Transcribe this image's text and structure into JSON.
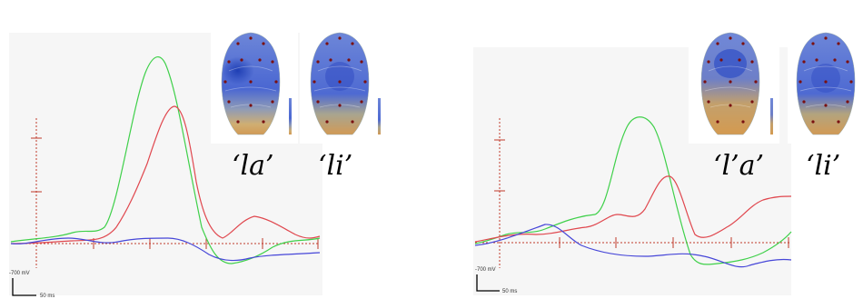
{
  "figure": {
    "panels": [
      {
        "id": "left",
        "scale": {
          "voltage": "-700 mV",
          "time": "50 ms"
        },
        "maps": [
          {
            "label": "‘la’",
            "pattern": "left-focus"
          },
          {
            "label": "‘li’",
            "pattern": "central"
          }
        ],
        "series_colors": {
          "green": "#3fd04a",
          "red": "#e0474e",
          "blue": "#4646d8"
        }
      },
      {
        "id": "right",
        "scale": {
          "voltage": "-700 mV",
          "time": "50 ms"
        },
        "maps": [
          {
            "label": "‘l’a’",
            "pattern": "central-upper"
          },
          {
            "label": "‘li’",
            "pattern": "central"
          }
        ],
        "series_colors": {
          "green": "#3fd04a",
          "red": "#e0474e",
          "blue": "#4646d8"
        }
      }
    ],
    "head_colors": {
      "blue": "#3f5fd6",
      "gold": "#d4a05a",
      "electrode": "#7a1010"
    }
  }
}
